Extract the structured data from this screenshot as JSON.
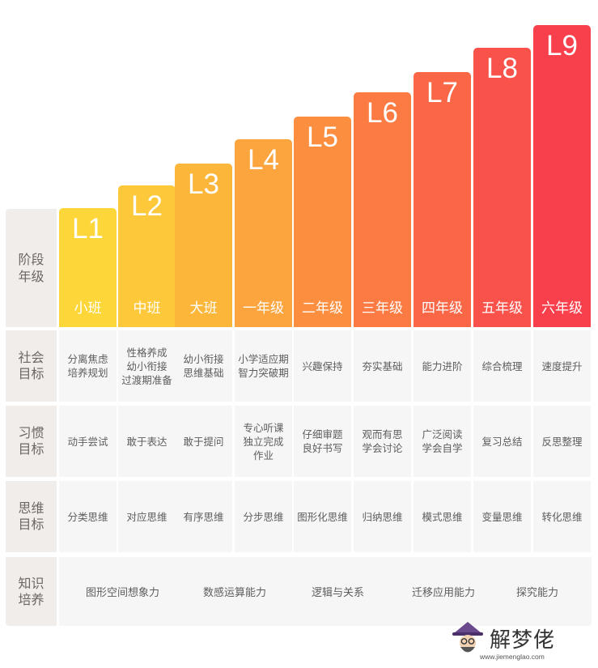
{
  "header": {
    "label_line1": "阶段",
    "label_line2": "年级"
  },
  "levels": [
    {
      "level": "L1",
      "grade": "小班"
    },
    {
      "level": "L2",
      "grade": "中班"
    },
    {
      "level": "L3",
      "grade": "大班"
    },
    {
      "level": "L4",
      "grade": "一年级"
    },
    {
      "level": "L5",
      "grade": "二年级"
    },
    {
      "level": "L6",
      "grade": "三年级"
    },
    {
      "level": "L7",
      "grade": "四年级"
    },
    {
      "level": "L8",
      "grade": "五年级"
    },
    {
      "level": "L9",
      "grade": "六年级"
    }
  ],
  "level_colors": [
    "#fdd73a",
    "#fdc83a",
    "#fcb639",
    "#fca43d",
    "#fb8f3f",
    "#fb7b43",
    "#fa6747",
    "#f9524a",
    "#f8404c"
  ],
  "rows": [
    {
      "label_line1": "社会",
      "label_line2": "目标",
      "cells": [
        "分离焦虑\n培养规划",
        "性格养成\n幼小衔接\n过渡期准备",
        "幼小衔接\n思维基础",
        "小学适应期\n智力突破期",
        "兴趣保持",
        "夯实基础",
        "能力进阶",
        "综合梳理",
        "速度提升"
      ]
    },
    {
      "label_line1": "习惯",
      "label_line2": "目标",
      "cells": [
        "动手尝试",
        "敢于表达",
        "敢于提问",
        "专心听课\n独立完成\n作业",
        "仔细审题\n良好书写",
        "观而有思\n学会讨论",
        "广泛阅读\n学会自学",
        "复习总结",
        "反思整理"
      ]
    },
    {
      "label_line1": "思维",
      "label_line2": "目标",
      "cells": [
        "分类思维",
        "对应思维",
        "有序思维",
        "分步思维",
        "图形化思维",
        "归纳思维",
        "模式思维",
        "变量思维",
        "转化思维"
      ]
    }
  ],
  "knowledge": {
    "label_line1": "知识",
    "label_line2": "培养",
    "skills": [
      "图形空间想象力",
      "数感运算能力",
      "逻辑与关系",
      "迁移应用能力",
      "探究能力"
    ]
  },
  "watermark": {
    "text": "解梦佬",
    "url": "www.jiemenglao.com"
  }
}
